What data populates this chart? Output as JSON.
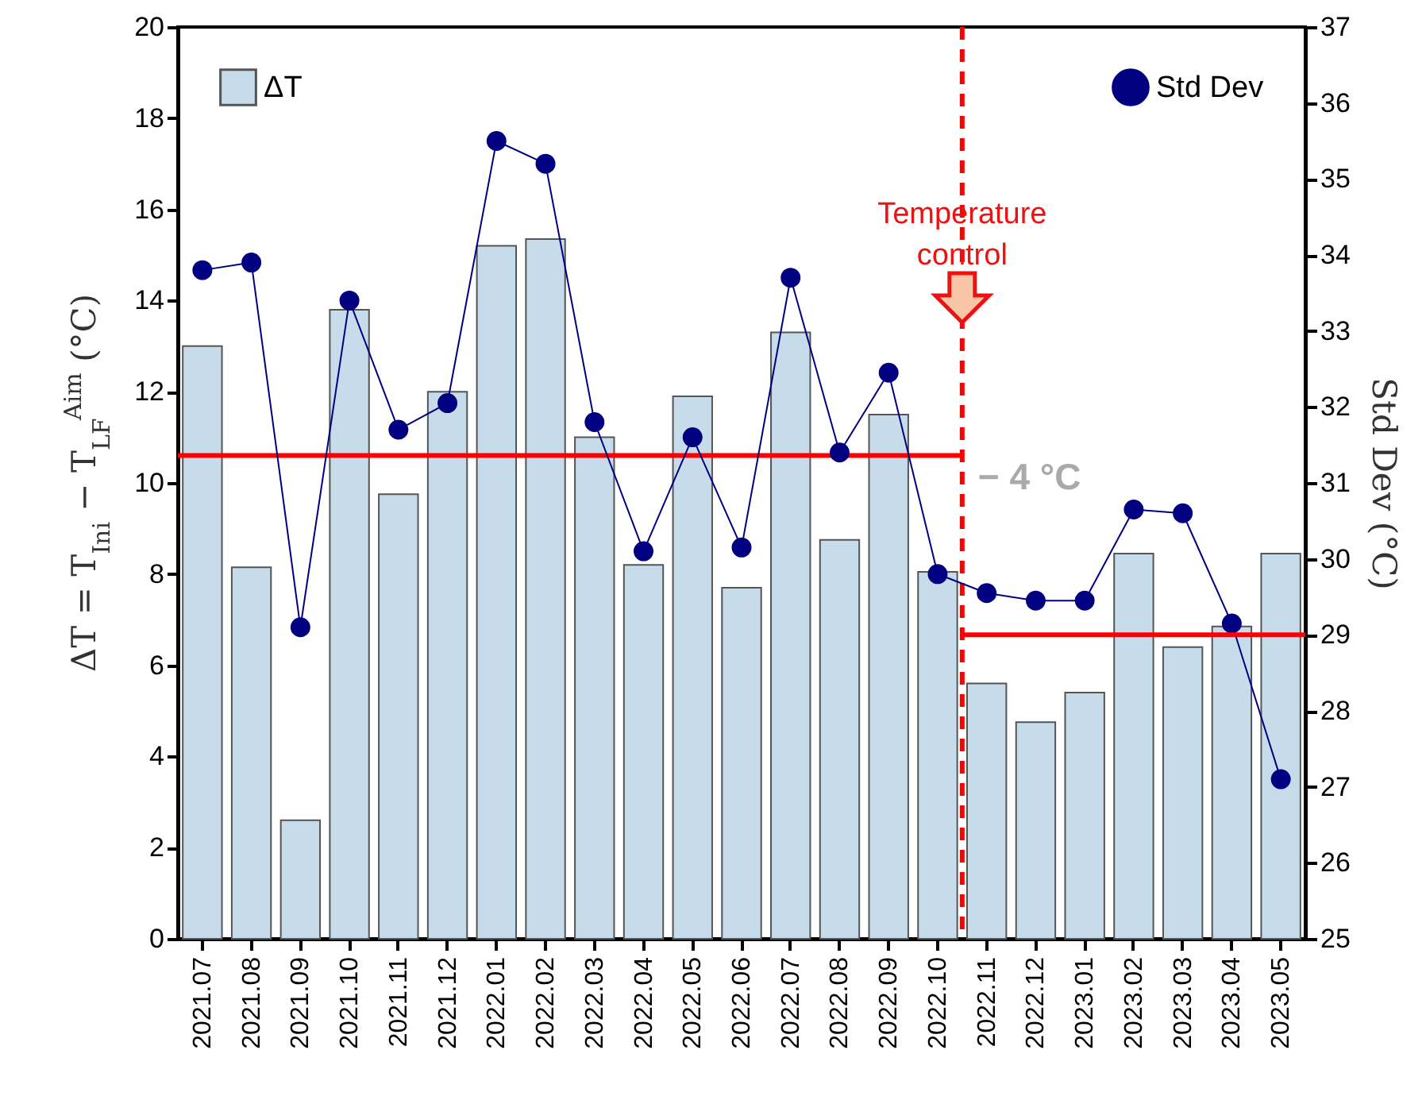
{
  "chart_data": {
    "type": "bar",
    "ylabel": "ΔT = T$_{Ini}$ − T$_{LF}$$^{Aim}$ (°C)",
    "y2label": "Std Dev (°C)",
    "categories": [
      "2021.07",
      "2021.08",
      "2021.09",
      "2021.10",
      "2021.11",
      "2021.12",
      "2022.01",
      "2022.02",
      "2022.03",
      "2022.04",
      "2022.05",
      "2022.06",
      "2022.07",
      "2022.08",
      "2022.09",
      "2022.10",
      "2022.11",
      "2022.12",
      "2023.01",
      "2023.02",
      "2023.03",
      "2023.04",
      "2023.05"
    ],
    "series": [
      {
        "name": "ΔT",
        "color": "#c6dcea",
        "values": [
          13.0,
          8.15,
          2.6,
          13.8,
          9.75,
          12.0,
          15.2,
          15.35,
          11.0,
          8.2,
          11.9,
          7.7,
          13.3,
          8.75,
          11.5,
          8.05,
          5.6,
          4.75,
          5.4,
          8.45,
          6.4,
          6.85,
          8.45
        ]
      },
      {
        "name": "Std Dev",
        "type": "line",
        "axis": "y2",
        "color": "#000080",
        "values": [
          33.8,
          33.9,
          29.1,
          33.4,
          31.7,
          32.05,
          35.5,
          35.2,
          31.8,
          30.1,
          31.6,
          30.15,
          33.7,
          31.4,
          32.45,
          29.8,
          29.55,
          29.45,
          29.45,
          30.65,
          30.6,
          29.15,
          27.1
        ]
      }
    ],
    "ylim": [
      0,
      20
    ],
    "yticks": [
      0,
      2,
      4,
      6,
      8,
      10,
      12,
      14,
      16,
      18,
      20
    ],
    "y2lim": [
      25,
      37
    ],
    "y2ticks": [
      25,
      26,
      27,
      28,
      29,
      30,
      31,
      32,
      33,
      34,
      35,
      36,
      37
    ],
    "ref_lines": [
      {
        "axis": "x",
        "value": "2022.11",
        "color": "#ff0000",
        "line_style": "dashed"
      },
      {
        "axis": "y",
        "value": 10.6,
        "color": "#ff0000"
      },
      {
        "axis": "y2",
        "value": 29,
        "color": "#ff0000"
      }
    ],
    "annotations": [
      "Temperature\ncontrol",
      "− 4 °C"
    ],
    "legend": "top",
    "marker": "circle",
    "grid": false
  }
}
